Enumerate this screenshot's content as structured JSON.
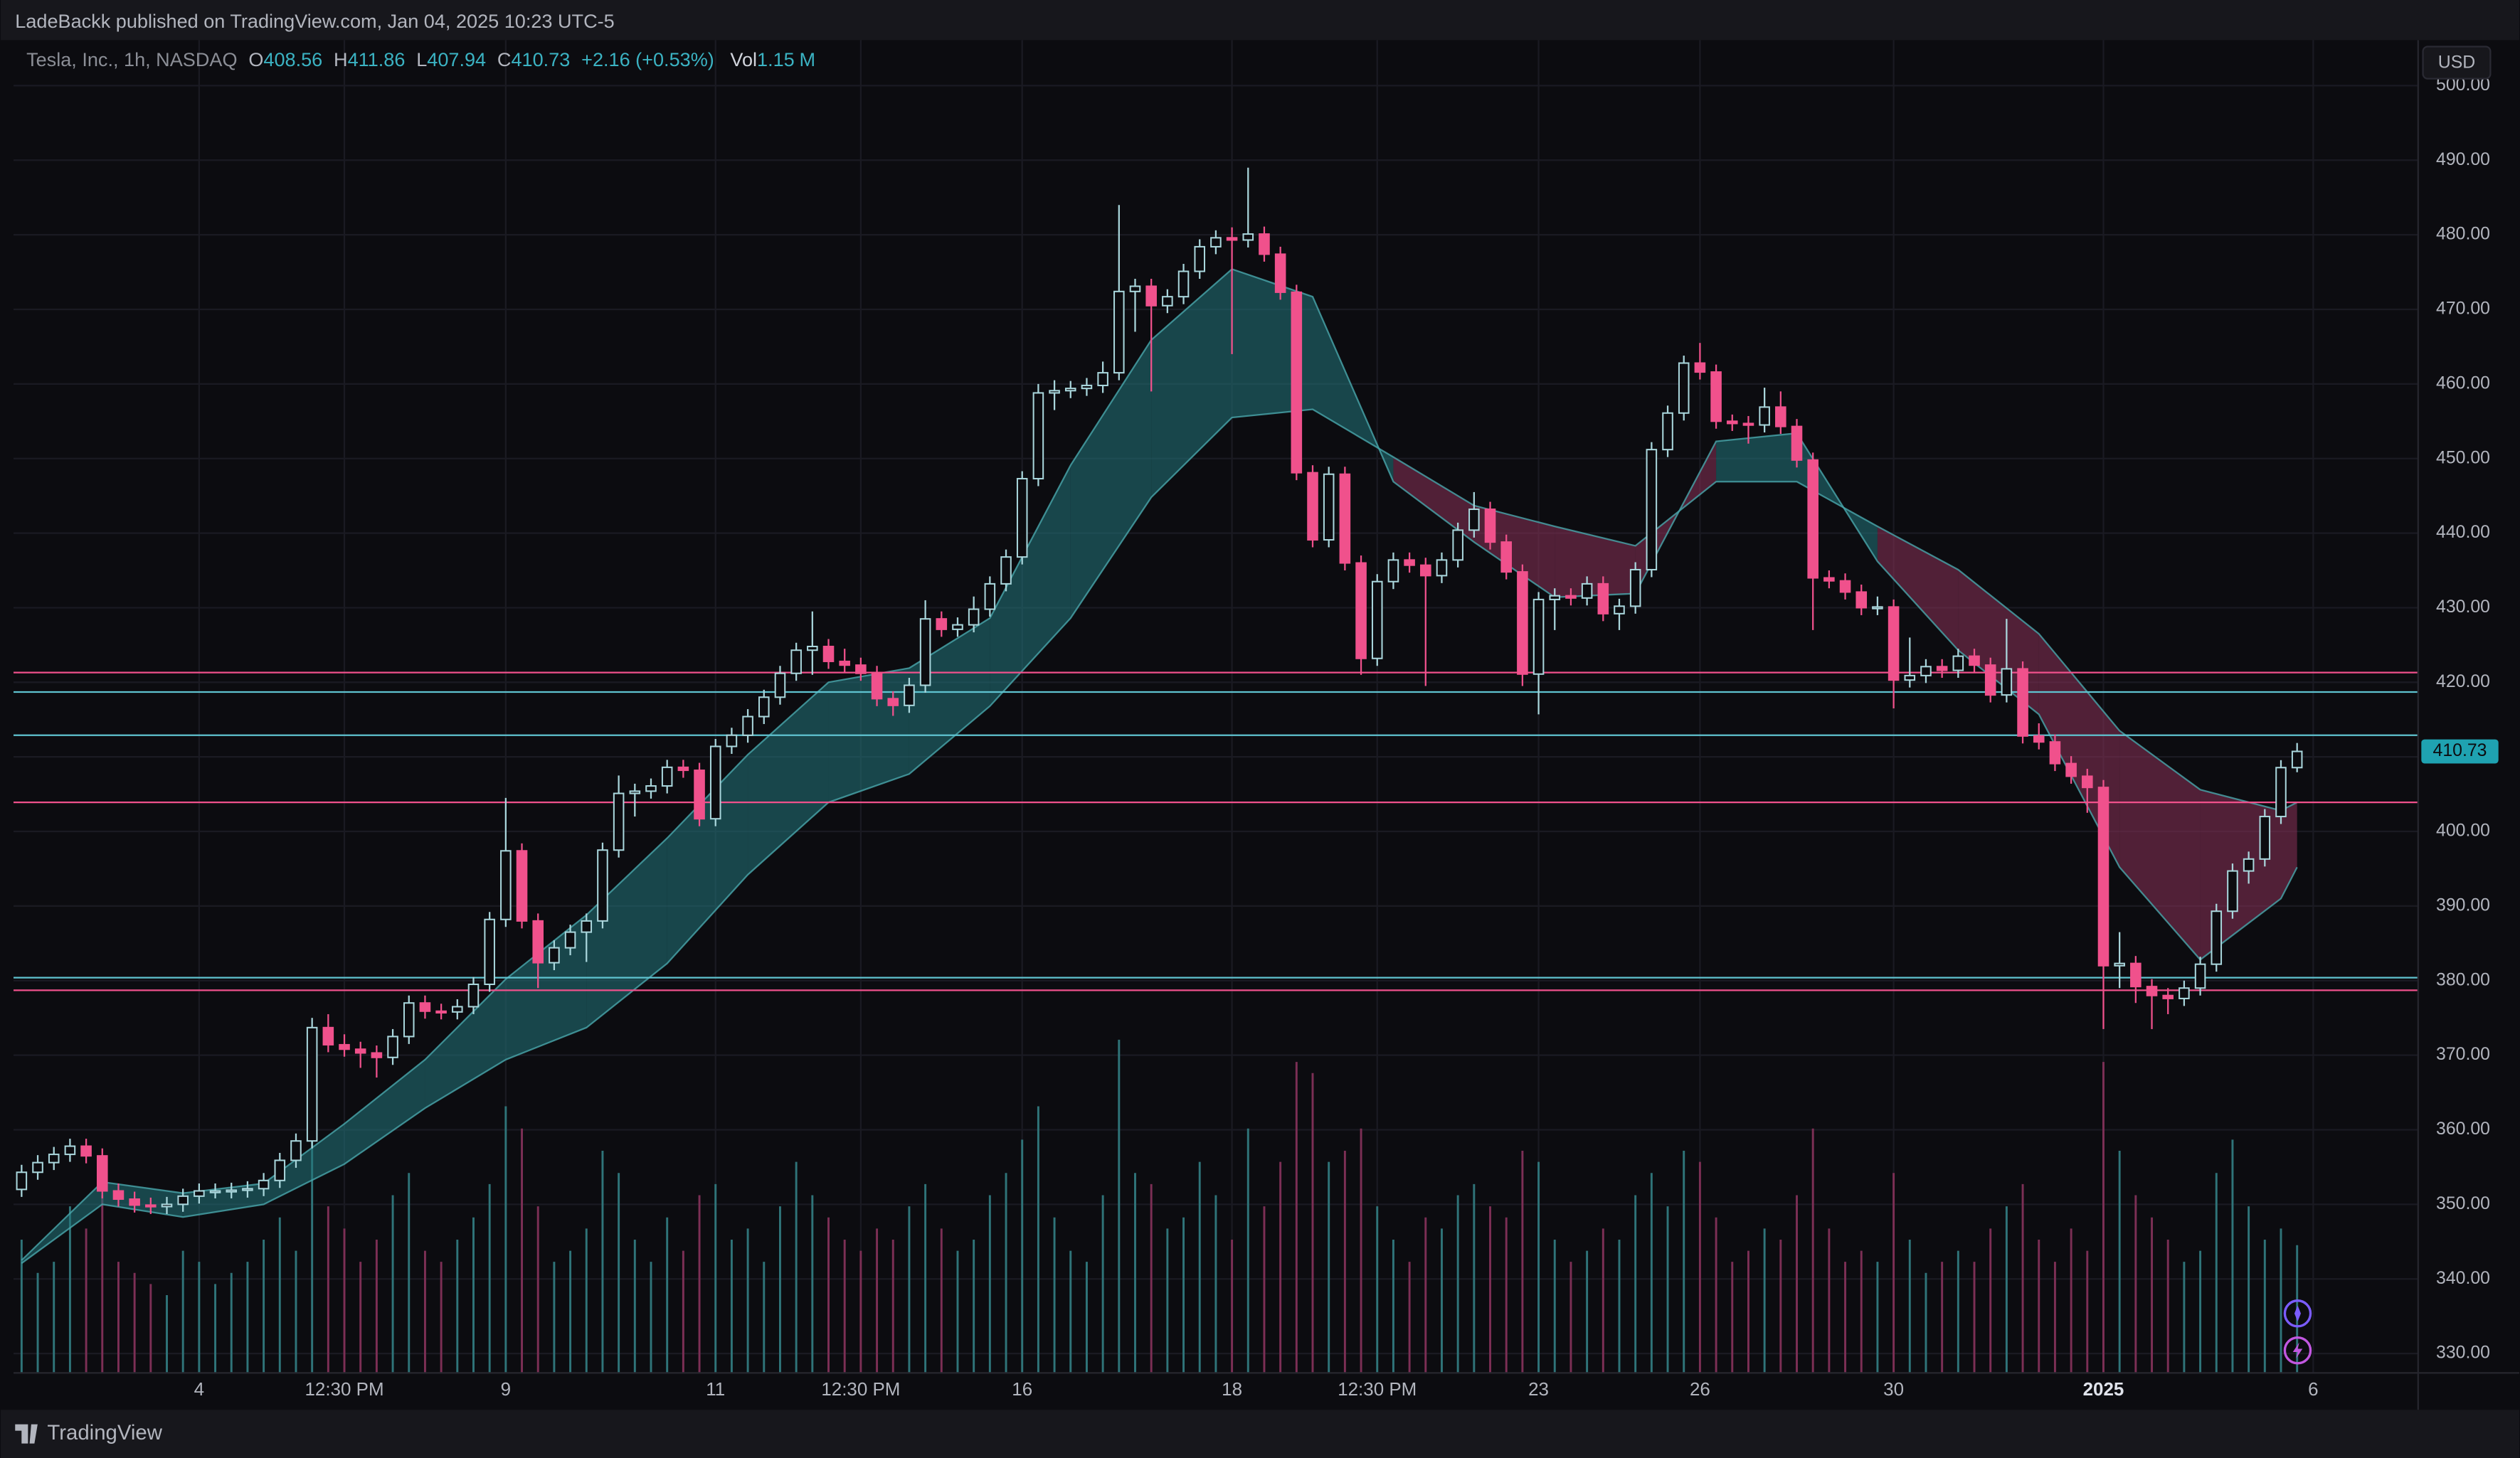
{
  "header": {
    "published": "LadeBackk published on TradingView.com, Jan 04, 2025 10:23 UTC-5"
  },
  "footer": {
    "brand": "TradingView"
  },
  "chart_data": {
    "type": "candlestick",
    "symbol": "Tesla, Inc., 1h, NASDAQ",
    "ohlc_labels": [
      "O",
      "H",
      "L",
      "C"
    ],
    "change": "+2.16 (+0.53%)",
    "volume_label": "Vol",
    "volume_unit": "M",
    "currency": "USD",
    "up_color": "#a9d6dc",
    "down_color": "#f0518c",
    "up_volume_color": "#2f7479",
    "down_volume_color": "#7c2f55",
    "band_up_color": "#23777c",
    "band_down_color": "#8a3258",
    "band_line_color": "#4aa7ad",
    "last_price_color": "#1fa2b1",
    "grid": true,
    "ylim": [
      327.4,
      506.1
    ],
    "yticks": [
      {
        "value": 330,
        "label": "330.00"
      },
      {
        "value": 340,
        "label": "340.00"
      },
      {
        "value": 350,
        "label": "350.00"
      },
      {
        "value": 360,
        "label": "360.00"
      },
      {
        "value": 370,
        "label": "370.00"
      },
      {
        "value": 380,
        "label": "380.00"
      },
      {
        "value": 390,
        "label": "390.00"
      },
      {
        "value": 400,
        "label": "400.00"
      },
      {
        "value": 410,
        "label": "410.00"
      },
      {
        "value": 420,
        "label": "420.00"
      },
      {
        "value": 430,
        "label": "430.00"
      },
      {
        "value": 440,
        "label": "440.00"
      },
      {
        "value": 450,
        "label": "450.00"
      },
      {
        "value": 460,
        "label": "460.00"
      },
      {
        "value": 470,
        "label": "470.00"
      },
      {
        "value": 480,
        "label": "480.00"
      },
      {
        "value": 490,
        "label": "490.00"
      },
      {
        "value": 500,
        "label": "500.00"
      }
    ],
    "xlim": [
      -0.5,
      148.5
    ],
    "xticks": [
      {
        "value": 11,
        "label": "4"
      },
      {
        "value": 20,
        "label": "12:30 PM"
      },
      {
        "value": 30,
        "label": "9"
      },
      {
        "value": 43,
        "label": "11"
      },
      {
        "value": 52,
        "label": "12:30 PM"
      },
      {
        "value": 62,
        "label": "16"
      },
      {
        "value": 75,
        "label": "18"
      },
      {
        "value": 84,
        "label": "12:30 PM"
      },
      {
        "value": 94,
        "label": "23"
      },
      {
        "value": 104,
        "label": "26"
      },
      {
        "value": 116,
        "label": "30"
      },
      {
        "value": 129,
        "label": "2025",
        "bold": true
      },
      {
        "value": 142,
        "label": "6"
      }
    ],
    "vlim": [
      0,
      12
    ],
    "levels": [
      {
        "value": 421.3,
        "color": "#f0518c"
      },
      {
        "value": 418.7,
        "color": "#5fc3d0"
      },
      {
        "value": 412.9,
        "color": "#5fc3d0"
      },
      {
        "value": 403.9,
        "color": "#f0518c"
      },
      {
        "value": 380.4,
        "color": "#5fc3d0"
      },
      {
        "value": 378.7,
        "color": "#f0518c"
      }
    ],
    "candles": [
      [
        352.0,
        355.3,
        351.0,
        354.3
      ],
      [
        354.3,
        356.6,
        353.3,
        355.6
      ],
      [
        355.6,
        357.7,
        354.6,
        356.7
      ],
      [
        356.7,
        358.8,
        355.7,
        357.8
      ],
      [
        357.8,
        358.8,
        355.5,
        356.5
      ],
      [
        356.5,
        357.5,
        350.8,
        351.8
      ],
      [
        351.8,
        352.8,
        349.7,
        350.7
      ],
      [
        350.7,
        351.7,
        348.9,
        349.9
      ],
      [
        349.9,
        350.9,
        348.7,
        349.7
      ],
      [
        349.7,
        351.0,
        348.7,
        350.0
      ],
      [
        350.0,
        352.1,
        349.0,
        351.1
      ],
      [
        351.1,
        352.8,
        350.1,
        351.8
      ],
      [
        351.8,
        352.8,
        350.8,
        351.8
      ],
      [
        351.8,
        352.9,
        350.8,
        351.9
      ],
      [
        351.9,
        353.1,
        350.9,
        352.1
      ],
      [
        352.1,
        354.2,
        351.1,
        353.2
      ],
      [
        353.2,
        356.9,
        352.2,
        355.9
      ],
      [
        355.9,
        359.5,
        354.9,
        358.5
      ],
      [
        358.5,
        375.0,
        357.5,
        373.7
      ],
      [
        373.7,
        375.5,
        370.4,
        371.4
      ],
      [
        371.4,
        372.8,
        369.8,
        370.8
      ],
      [
        370.8,
        371.8,
        368.3,
        370.3
      ],
      [
        370.3,
        371.3,
        367.0,
        369.7
      ],
      [
        369.7,
        373.5,
        368.7,
        372.5
      ],
      [
        372.5,
        378.0,
        371.5,
        377.0
      ],
      [
        377.0,
        378.0,
        374.9,
        375.9
      ],
      [
        375.9,
        376.9,
        374.8,
        375.8
      ],
      [
        375.8,
        377.5,
        374.8,
        376.5
      ],
      [
        376.5,
        380.5,
        375.5,
        379.5
      ],
      [
        379.5,
        389.2,
        378.5,
        388.2
      ],
      [
        388.2,
        404.5,
        387.2,
        397.4
      ],
      [
        397.4,
        398.4,
        387.0,
        388.0
      ],
      [
        388.0,
        389.0,
        379.0,
        382.4
      ],
      [
        382.4,
        385.4,
        381.4,
        384.4
      ],
      [
        384.4,
        387.5,
        383.4,
        386.5
      ],
      [
        386.5,
        389.0,
        382.5,
        388.0
      ],
      [
        388.0,
        398.5,
        387.0,
        397.5
      ],
      [
        397.5,
        407.5,
        396.5,
        405.1
      ],
      [
        405.1,
        406.4,
        402.0,
        405.4
      ],
      [
        405.4,
        407.1,
        404.4,
        406.1
      ],
      [
        406.1,
        409.6,
        405.1,
        408.6
      ],
      [
        408.6,
        409.6,
        407.2,
        408.2
      ],
      [
        408.2,
        409.2,
        400.7,
        401.7
      ],
      [
        401.7,
        412.4,
        400.7,
        411.4
      ],
      [
        411.4,
        413.9,
        410.4,
        412.9
      ],
      [
        412.9,
        416.4,
        411.9,
        415.4
      ],
      [
        415.4,
        419.0,
        414.4,
        418.0
      ],
      [
        418.0,
        422.2,
        417.0,
        421.2
      ],
      [
        421.2,
        425.3,
        420.2,
        424.3
      ],
      [
        424.3,
        429.5,
        421.0,
        424.8
      ],
      [
        424.8,
        425.8,
        421.8,
        422.8
      ],
      [
        422.8,
        424.5,
        421.3,
        422.3
      ],
      [
        422.3,
        423.3,
        420.2,
        421.2
      ],
      [
        421.2,
        422.2,
        416.8,
        417.8
      ],
      [
        417.8,
        418.8,
        415.5,
        416.9
      ],
      [
        416.9,
        420.6,
        415.9,
        419.6
      ],
      [
        419.6,
        431.0,
        418.6,
        428.5
      ],
      [
        428.5,
        429.5,
        426.1,
        427.1
      ],
      [
        427.1,
        428.7,
        426.1,
        427.7
      ],
      [
        427.7,
        431.5,
        426.7,
        429.8
      ],
      [
        429.8,
        434.2,
        428.8,
        433.2
      ],
      [
        433.2,
        437.8,
        432.2,
        436.8
      ],
      [
        436.8,
        448.3,
        435.8,
        447.3
      ],
      [
        447.3,
        460.0,
        446.3,
        458.8
      ],
      [
        458.8,
        460.5,
        456.5,
        459.1
      ],
      [
        459.1,
        460.4,
        458.1,
        459.4
      ],
      [
        459.4,
        460.8,
        458.4,
        459.8
      ],
      [
        459.8,
        463.0,
        458.8,
        461.5
      ],
      [
        461.5,
        484.0,
        460.5,
        472.4
      ],
      [
        472.4,
        474.1,
        467.0,
        473.1
      ],
      [
        473.1,
        474.1,
        459.0,
        470.5
      ],
      [
        470.5,
        472.7,
        469.5,
        471.7
      ],
      [
        471.7,
        476.1,
        470.7,
        475.1
      ],
      [
        475.1,
        479.4,
        474.1,
        478.4
      ],
      [
        478.4,
        480.6,
        477.4,
        479.6
      ],
      [
        479.6,
        481.0,
        464.0,
        479.3
      ],
      [
        479.3,
        489.0,
        478.3,
        480.1
      ],
      [
        480.1,
        481.1,
        476.4,
        477.4
      ],
      [
        477.4,
        478.4,
        471.3,
        472.3
      ],
      [
        472.3,
        473.3,
        447.1,
        448.1
      ],
      [
        448.1,
        449.1,
        438.1,
        439.1
      ],
      [
        439.1,
        448.9,
        438.1,
        447.9
      ],
      [
        447.9,
        448.9,
        435.0,
        436.0
      ],
      [
        436.0,
        437.0,
        421.0,
        423.2
      ],
      [
        423.2,
        434.5,
        422.2,
        433.5
      ],
      [
        433.5,
        437.4,
        432.5,
        436.4
      ],
      [
        436.4,
        437.4,
        434.7,
        435.7
      ],
      [
        435.7,
        436.7,
        419.5,
        434.3
      ],
      [
        434.3,
        437.4,
        433.3,
        436.4
      ],
      [
        436.4,
        441.4,
        435.4,
        440.4
      ],
      [
        440.4,
        445.5,
        439.4,
        443.2
      ],
      [
        443.2,
        444.2,
        437.8,
        438.8
      ],
      [
        438.8,
        439.8,
        433.8,
        434.8
      ],
      [
        434.8,
        435.8,
        419.5,
        421.1
      ],
      [
        421.1,
        432.1,
        415.7,
        431.1
      ],
      [
        431.1,
        432.6,
        427.0,
        431.6
      ],
      [
        431.6,
        432.6,
        430.3,
        431.3
      ],
      [
        431.3,
        434.2,
        430.3,
        433.2
      ],
      [
        433.2,
        434.2,
        428.2,
        429.2
      ],
      [
        429.2,
        431.2,
        427.0,
        430.2
      ],
      [
        430.2,
        436.1,
        429.2,
        435.1
      ],
      [
        435.1,
        452.2,
        434.1,
        451.2
      ],
      [
        451.2,
        457.1,
        450.2,
        456.1
      ],
      [
        456.1,
        463.8,
        455.1,
        462.8
      ],
      [
        462.8,
        465.5,
        460.6,
        461.6
      ],
      [
        461.6,
        462.6,
        454.0,
        455.0
      ],
      [
        455.0,
        455.9,
        453.7,
        454.7
      ],
      [
        454.7,
        455.7,
        452.0,
        454.5
      ],
      [
        454.5,
        459.5,
        453.5,
        456.9
      ],
      [
        456.9,
        459.0,
        453.3,
        454.3
      ],
      [
        454.3,
        455.3,
        448.8,
        449.8
      ],
      [
        449.8,
        450.8,
        427.0,
        434.0
      ],
      [
        434.0,
        435.0,
        432.6,
        433.6
      ],
      [
        433.6,
        434.6,
        431.1,
        432.1
      ],
      [
        432.1,
        433.1,
        429.0,
        430.0
      ],
      [
        430.0,
        431.5,
        429.0,
        430.1
      ],
      [
        430.1,
        431.1,
        416.5,
        420.3
      ],
      [
        420.3,
        426.0,
        419.3,
        420.9
      ],
      [
        420.9,
        423.1,
        419.9,
        422.1
      ],
      [
        422.1,
        423.1,
        420.6,
        421.6
      ],
      [
        421.6,
        424.5,
        420.6,
        423.5
      ],
      [
        423.5,
        424.5,
        421.3,
        422.3
      ],
      [
        422.3,
        423.3,
        417.3,
        418.3
      ],
      [
        418.3,
        428.5,
        417.3,
        421.8
      ],
      [
        421.8,
        422.8,
        411.8,
        412.8
      ],
      [
        412.8,
        414.5,
        411.0,
        412.0
      ],
      [
        412.0,
        413.0,
        408.1,
        409.1
      ],
      [
        409.1,
        410.1,
        406.4,
        407.4
      ],
      [
        407.4,
        408.4,
        402.5,
        405.9
      ],
      [
        405.9,
        406.9,
        373.5,
        382.0
      ],
      [
        382.0,
        386.5,
        379.0,
        382.3
      ],
      [
        382.3,
        383.3,
        377.0,
        379.2
      ],
      [
        379.2,
        380.2,
        373.5,
        378.0
      ],
      [
        378.0,
        379.0,
        375.5,
        377.6
      ],
      [
        377.6,
        380.0,
        376.6,
        379.0
      ],
      [
        379.0,
        383.2,
        378.0,
        382.2
      ],
      [
        382.2,
        390.3,
        381.2,
        389.3
      ],
      [
        389.3,
        395.7,
        388.3,
        394.7
      ],
      [
        394.7,
        397.3,
        393.0,
        396.3
      ],
      [
        396.3,
        403.0,
        395.3,
        402.0
      ],
      [
        402.0,
        409.56,
        401.0,
        408.56
      ],
      [
        408.56,
        411.86,
        407.94,
        410.73
      ]
    ],
    "volume": [
      1.2,
      0.9,
      1.0,
      1.5,
      1.3,
      1.6,
      1.0,
      0.9,
      0.8,
      0.7,
      1.1,
      1.0,
      0.8,
      0.9,
      1.0,
      1.2,
      1.4,
      1.1,
      3.0,
      1.5,
      1.3,
      1.0,
      1.2,
      1.6,
      1.8,
      1.1,
      1.0,
      1.2,
      1.4,
      1.7,
      2.4,
      2.2,
      1.5,
      1.0,
      1.1,
      1.3,
      2.0,
      1.8,
      1.2,
      1.0,
      1.4,
      1.1,
      1.6,
      1.7,
      1.2,
      1.3,
      1.0,
      1.5,
      1.9,
      1.6,
      1.4,
      1.2,
      1.1,
      1.3,
      1.2,
      1.5,
      1.7,
      1.3,
      1.1,
      1.2,
      1.6,
      1.8,
      2.1,
      2.4,
      1.4,
      1.1,
      1.0,
      1.6,
      3.0,
      1.8,
      1.7,
      1.3,
      1.4,
      1.9,
      1.6,
      1.2,
      2.2,
      1.5,
      1.9,
      2.8,
      2.7,
      1.9,
      2.0,
      2.2,
      1.5,
      1.2,
      1.0,
      1.4,
      1.3,
      1.6,
      1.7,
      1.5,
      1.4,
      2.0,
      1.9,
      1.2,
      1.0,
      1.1,
      1.3,
      1.2,
      1.6,
      1.8,
      1.5,
      2.0,
      1.9,
      1.4,
      1.0,
      1.1,
      1.3,
      1.2,
      1.6,
      2.2,
      1.3,
      1.0,
      1.1,
      1.0,
      1.8,
      1.2,
      0.9,
      1.0,
      1.1,
      1.0,
      1.3,
      1.5,
      1.7,
      1.2,
      1.0,
      1.3,
      1.1,
      2.8,
      2.0,
      1.6,
      1.4,
      1.2,
      1.0,
      1.1,
      1.8,
      2.1,
      1.5,
      1.2,
      1.3,
      1.15
    ],
    "band_x": [
      0,
      5,
      10,
      15,
      20,
      25,
      30,
      35,
      40,
      45,
      50,
      55,
      60,
      65,
      70,
      75,
      80,
      85,
      90,
      95,
      100,
      105,
      110,
      115,
      120,
      125,
      130,
      135,
      140,
      141
    ],
    "ema_fast": [
      342.5,
      353.0,
      351.5,
      352.8,
      360.8,
      369.4,
      380.2,
      388.8,
      399.1,
      410.3,
      420.0,
      421.9,
      428.6,
      449.1,
      465.9,
      475.4,
      471.7,
      446.9,
      438.8,
      431.4,
      431.9,
      452.3,
      453.4,
      436.2,
      424.3,
      415.7,
      395.2,
      382.8,
      391.0,
      395.2
    ],
    "ema_slow": [
      342.1,
      350.0,
      348.3,
      350.0,
      355.4,
      362.9,
      369.4,
      373.7,
      382.3,
      394.2,
      403.9,
      407.7,
      416.8,
      428.6,
      444.8,
      455.5,
      456.6,
      450.2,
      443.7,
      440.9,
      438.3,
      446.9,
      446.9,
      440.9,
      435.1,
      426.5,
      413.5,
      405.6,
      402.8,
      403.9
    ]
  }
}
